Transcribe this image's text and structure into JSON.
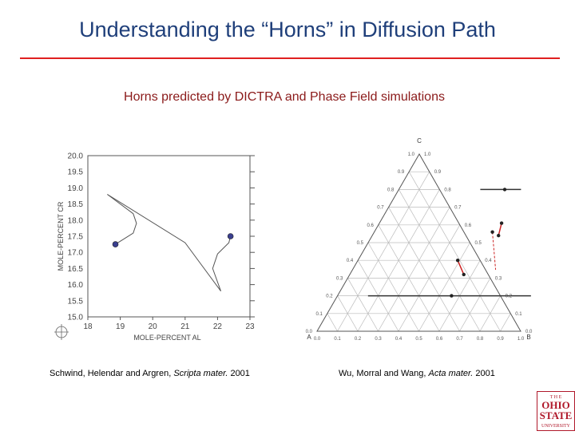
{
  "slide": {
    "title": "Understanding the “Horns” in Diffusion Path",
    "subtitle": "Horns predicted by DICTRA and Phase Field simulations"
  },
  "captions": {
    "left": {
      "authors": "Schwind, Helendar and Argren, ",
      "journal": "Scripta mater.",
      "year": " 2001"
    },
    "right": {
      "authors": "Wu, Morral and Wang, ",
      "journal": "Acta mater.",
      "year": " 2001"
    }
  },
  "logo": {
    "line1": "T H E",
    "line2": "OHIO",
    "line3": "STATE",
    "line4": "UNIVERSITY",
    "color": "#b0182a"
  },
  "chart_data": [
    {
      "type": "line",
      "xlabel": "MOLE-PERCENT AL",
      "ylabel": "MOLE-PERCENT CR",
      "xlim": [
        18,
        23
      ],
      "ylim": [
        15.0,
        20.0
      ],
      "x_ticks": [
        "18",
        "19",
        "20",
        "21",
        "22",
        "23"
      ],
      "y_ticks": [
        "15.0",
        "15.5",
        "16.0",
        "16.5",
        "17.0",
        "17.5",
        "18.0",
        "18.5",
        "19.0",
        "19.5",
        "20.0"
      ],
      "series": [
        {
          "values": [
            [
              18.6,
              18.8
            ],
            [
              19.4,
              18.2
            ],
            [
              19.5,
              17.9
            ],
            [
              19.4,
              17.6
            ],
            [
              18.85,
              17.25
            ]
          ]
        },
        {
          "values": [
            [
              18.6,
              18.8
            ],
            [
              21.0,
              17.3
            ],
            [
              22.1,
              15.8
            ]
          ]
        },
        {
          "values": [
            [
              22.1,
              15.8
            ],
            [
              21.85,
              16.5
            ],
            [
              22.0,
              16.95
            ],
            [
              22.35,
              17.3
            ],
            [
              22.4,
              17.5
            ]
          ]
        }
      ],
      "points": [
        [
          18.85,
          17.25
        ],
        [
          22.4,
          17.5
        ]
      ],
      "point_color": "#3a3f8f"
    },
    {
      "type": "scatter",
      "title": "",
      "vertex_labels": {
        "top": "C",
        "left": "A",
        "right": "B"
      },
      "bottom_ticks": [
        "0.0",
        "0.1",
        "0.2",
        "0.3",
        "0.4",
        "0.5",
        "0.6",
        "0.7",
        "0.8",
        "0.9",
        "1.0"
      ],
      "left_ticks": [
        "1.0",
        "0.9",
        "0.8",
        "0.7",
        "0.6",
        "0.5",
        "0.4",
        "0.3",
        "0.2",
        "0.1",
        "0.0"
      ],
      "right_ticks": [
        "1.0",
        "0.9",
        "0.8",
        "0.7",
        "0.6",
        "0.5",
        "0.4",
        "0.3",
        "0.2",
        "0.1",
        "0.0"
      ],
      "tie_lines": [
        {
          "start": [
            0.4,
            0.8
          ],
          "end": [
            0.6,
            0.8
          ]
        },
        {
          "start": [
            0.15,
            0.2
          ],
          "end": [
            0.95,
            0.2
          ]
        }
      ],
      "points": [
        [
          0.52,
          0.8
        ],
        [
          0.6,
          0.61
        ],
        [
          0.58,
          0.56
        ],
        [
          0.62,
          0.54
        ],
        [
          0.49,
          0.4
        ],
        [
          0.56,
          0.32
        ],
        [
          0.56,
          0.2
        ]
      ],
      "path_color": "#cc2222"
    }
  ]
}
